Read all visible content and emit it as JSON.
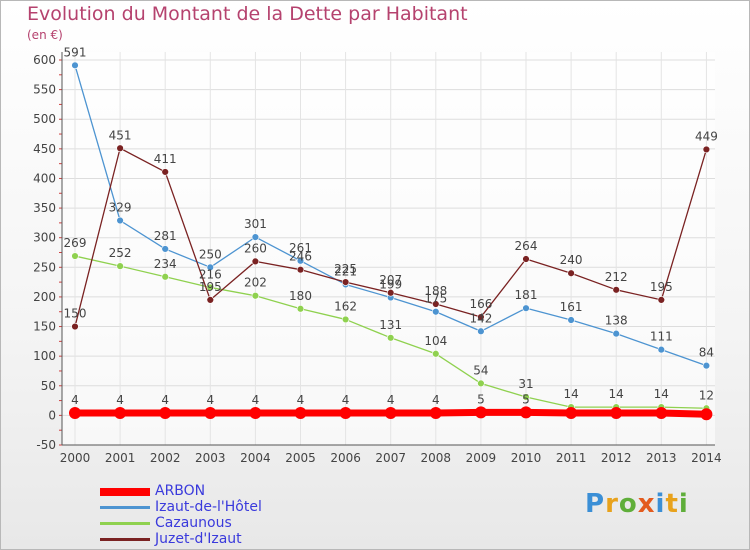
{
  "title": "Evolution du Montant de la Dette par Habitant",
  "subtitle": "(en €)",
  "logo": {
    "text": "Proxiti"
  },
  "colors": {
    "ARBON": "#ff0000",
    "Izaut": "#4d94d1",
    "Cazaunous": "#8fd14f",
    "Juzet": "#7a2222",
    "title": "#b5426e",
    "legend_text": "#3a3adc"
  },
  "chart_data": {
    "type": "line",
    "title": "Evolution du Montant de la Dette par Habitant",
    "ylabel": "(en €)",
    "x": [
      "2000",
      "2001",
      "2002",
      "2003",
      "2004",
      "2005",
      "2006",
      "2007",
      "2008",
      "2009",
      "2010",
      "2011",
      "2012",
      "2013",
      "2014"
    ],
    "ylim": [
      -50,
      600
    ],
    "yticks": [
      -50,
      0,
      50,
      100,
      150,
      200,
      250,
      300,
      350,
      400,
      450,
      500,
      550,
      600
    ],
    "grid": true,
    "legend_position": "bottom-left",
    "series": [
      {
        "name": "ARBON",
        "values": [
          4,
          4,
          4,
          4,
          4,
          4,
          4,
          4,
          4,
          5,
          5,
          4,
          4,
          4,
          2
        ],
        "labels": [
          "4",
          "4",
          "4",
          "4",
          "4",
          "4",
          "4",
          "4",
          "4",
          "5",
          "5",
          "",
          "",
          "",
          ""
        ]
      },
      {
        "name": "Izaut-de-l'Hôtel",
        "values": [
          591,
          329,
          281,
          250,
          301,
          261,
          221,
          199,
          175,
          142,
          181,
          161,
          138,
          111,
          84
        ],
        "labels": [
          "591",
          "329",
          "281",
          "250",
          "301",
          "261",
          "221",
          "199",
          "175",
          "142",
          "181",
          "161",
          "138",
          "111",
          "84"
        ]
      },
      {
        "name": "Cazaunous",
        "values": [
          269,
          252,
          234,
          216,
          202,
          180,
          162,
          131,
          104,
          54,
          31,
          14,
          14,
          14,
          12
        ],
        "labels": [
          "269",
          "252",
          "234",
          "216",
          "202",
          "180",
          "162",
          "131",
          "104",
          "54",
          "31",
          "14",
          "14",
          "14",
          "12"
        ]
      },
      {
        "name": "Juzet-d'Izaut",
        "values": [
          150,
          451,
          411,
          195,
          260,
          246,
          225,
          207,
          188,
          166,
          264,
          240,
          212,
          195,
          449
        ],
        "labels": [
          "150",
          "451",
          "411",
          "195",
          "260",
          "246",
          "225",
          "207",
          "188",
          "166",
          "264",
          "240",
          "212",
          "195",
          "449"
        ]
      }
    ]
  }
}
